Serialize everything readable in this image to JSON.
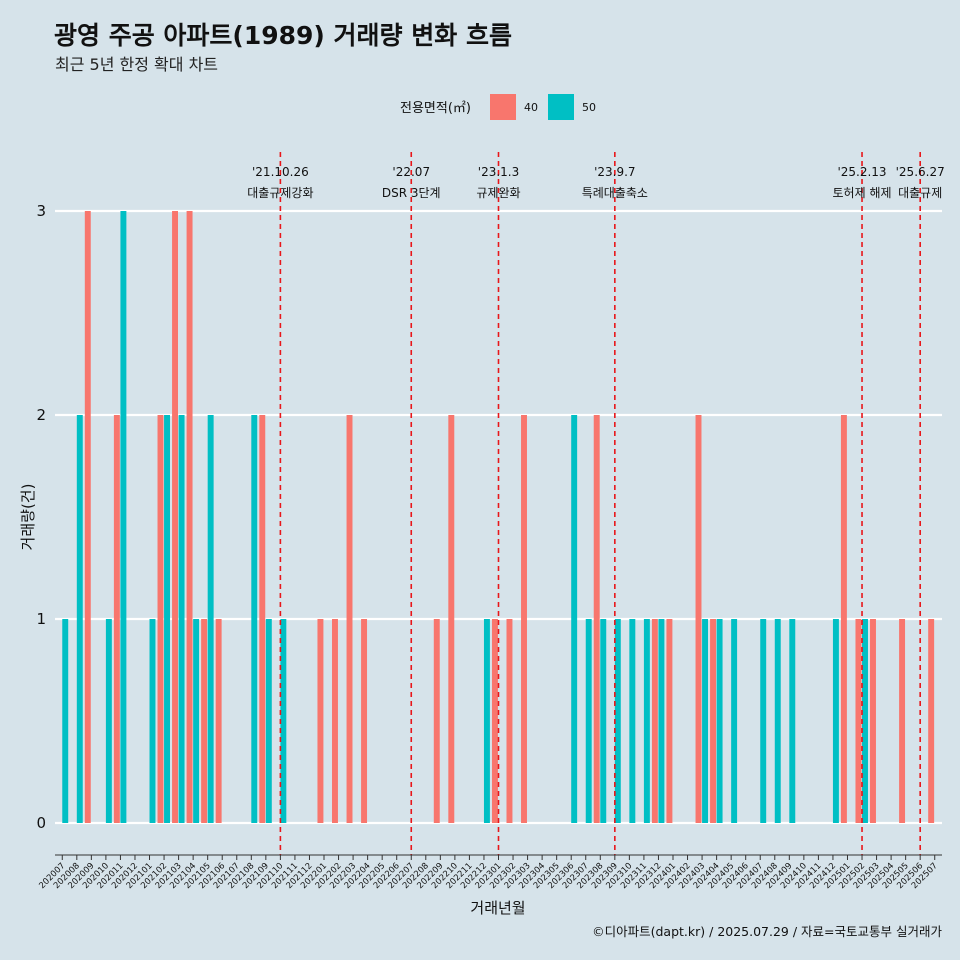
{
  "header": {
    "title": "광영 주공 아파트(1989) 거래량 변화 흐름",
    "subtitle": "최근 5년 한정 확대 차트"
  },
  "legend": {
    "title": "전용면적(㎡)",
    "items": [
      {
        "label": "40",
        "color": "#f8766d"
      },
      {
        "label": "50",
        "color": "#00bfc4"
      }
    ]
  },
  "caption": "©디아파트(dapt.kr) / 2025.07.29 / 자료=국토교통부 실거래가",
  "chart_data": {
    "type": "bar",
    "xlabel": "거래년월",
    "ylabel": "거래량(건)",
    "ylim": [
      0,
      3
    ],
    "yticks": [
      "0",
      "1",
      "2",
      "3"
    ],
    "grid": "horizontal",
    "legend_position": "top",
    "categories": [
      "202007",
      "202008",
      "202009",
      "202010",
      "202011",
      "202012",
      "202101",
      "202102",
      "202103",
      "202104",
      "202105",
      "202106",
      "202107",
      "202108",
      "202109",
      "202110",
      "202111",
      "202112",
      "202201",
      "202202",
      "202203",
      "202204",
      "202205",
      "202206",
      "202207",
      "202208",
      "202209",
      "202210",
      "202211",
      "202212",
      "202301",
      "202302",
      "202303",
      "202304",
      "202305",
      "202306",
      "202307",
      "202308",
      "202309",
      "202310",
      "202311",
      "202312",
      "202401",
      "202402",
      "202403",
      "202404",
      "202405",
      "202406",
      "202407",
      "202408",
      "202409",
      "202410",
      "202411",
      "202412",
      "202501",
      "202502",
      "202503",
      "202504",
      "202505",
      "202506",
      "202507"
    ],
    "series": [
      {
        "name": "40",
        "color": "#f8766d",
        "values": [
          0,
          0,
          3,
          0,
          2,
          0,
          0,
          2,
          3,
          3,
          1,
          1,
          0,
          0,
          2,
          0,
          0,
          0,
          1,
          1,
          2,
          1,
          0,
          0,
          0,
          0,
          1,
          2,
          0,
          0,
          1,
          1,
          2,
          0,
          0,
          0,
          0,
          2,
          0,
          0,
          0,
          1,
          1,
          0,
          2,
          1,
          0,
          0,
          0,
          0,
          0,
          0,
          0,
          0,
          2,
          1,
          1,
          0,
          1,
          0,
          1
        ]
      },
      {
        "name": "50",
        "color": "#00bfc4",
        "values": [
          1,
          2,
          0,
          1,
          3,
          0,
          1,
          2,
          2,
          1,
          2,
          0,
          0,
          2,
          1,
          1,
          0,
          0,
          0,
          0,
          0,
          0,
          0,
          0,
          0,
          0,
          0,
          0,
          0,
          1,
          0,
          0,
          0,
          0,
          0,
          2,
          1,
          1,
          1,
          1,
          1,
          1,
          0,
          0,
          1,
          1,
          1,
          0,
          1,
          1,
          1,
          0,
          0,
          1,
          0,
          1,
          0,
          0,
          0,
          0,
          0
        ]
      }
    ],
    "annotations": [
      {
        "date": "'21.10.26",
        "label": "대출규제강화",
        "x": "202110"
      },
      {
        "date": "'22.07",
        "label": "DSR 3단계",
        "x": "202207"
      },
      {
        "date": "'23.1.3",
        "label": "규제완화",
        "x": "202301"
      },
      {
        "date": "'23.9.7",
        "label": "특례대출축소",
        "x": "202309"
      },
      {
        "date": "'25.2.13",
        "label": "토허제 해제",
        "x": "202502"
      },
      {
        "date": "'25.6.27",
        "label": "대출규제",
        "x": "202506"
      }
    ]
  }
}
